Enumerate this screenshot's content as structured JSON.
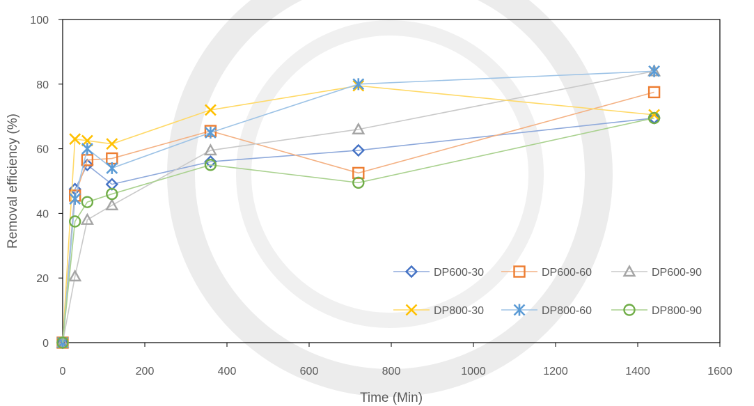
{
  "chart_data": {
    "type": "line",
    "xlabel": "Time (Min)",
    "ylabel": "Removal efficiency (%)",
    "xlim": [
      0,
      1600
    ],
    "ylim": [
      0,
      100
    ],
    "x_ticks": [
      "0",
      "200",
      "400",
      "600",
      "800",
      "1000",
      "1200",
      "1400",
      "1600"
    ],
    "y_ticks": [
      "0",
      "20",
      "40",
      "60",
      "80",
      "100"
    ],
    "x": [
      0,
      30,
      60,
      120,
      360,
      720,
      1440
    ],
    "grid": false,
    "legend_position": "bottom-right",
    "series": [
      {
        "name": "DP600-30",
        "values": [
          0,
          47.5,
          55,
          49,
          56,
          59.5,
          69.5
        ],
        "color": "#4472C4",
        "line_color": "#8EA9DB",
        "marker": "diamond"
      },
      {
        "name": "DP600-60",
        "values": [
          0,
          45.5,
          56.5,
          57,
          65.5,
          52.5,
          77.5
        ],
        "color": "#ED7D31",
        "line_color": "#F4B183",
        "marker": "square"
      },
      {
        "name": "DP600-90",
        "values": [
          0,
          20.5,
          38,
          42.5,
          59.5,
          66,
          84
        ],
        "color": "#A5A5A5",
        "line_color": "#C9C9C9",
        "marker": "triangle"
      },
      {
        "name": "DP800-30",
        "values": [
          0,
          63,
          62.5,
          61.5,
          72,
          79.5,
          70.5
        ],
        "color": "#FFC000",
        "line_color": "#FFD966",
        "marker": "x"
      },
      {
        "name": "DP800-60",
        "values": [
          0,
          44.5,
          60,
          54,
          65,
          80,
          84
        ],
        "color": "#5B9BD5",
        "line_color": "#9DC3E6",
        "marker": "asterisk"
      },
      {
        "name": "DP800-90",
        "values": [
          0,
          37.5,
          43.5,
          46,
          55,
          49.5,
          69.5
        ],
        "color": "#70AD47",
        "line_color": "#A9D18E",
        "marker": "circle"
      }
    ]
  }
}
